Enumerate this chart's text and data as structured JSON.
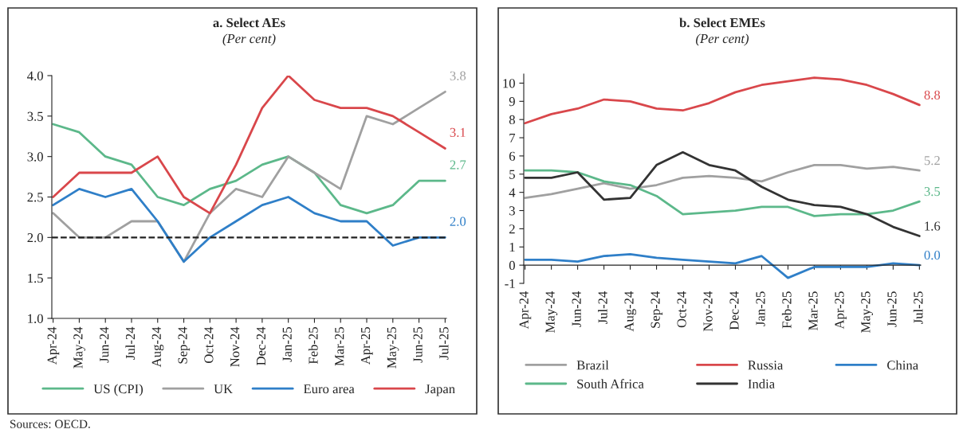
{
  "chart_data": [
    {
      "type": "line",
      "title": "a. Select AEs",
      "subtitle": "(Per cent)",
      "categories": [
        "Apr-24",
        "May-24",
        "Jun-24",
        "Jul-24",
        "Aug-24",
        "Sep-24",
        "Oct-24",
        "Nov-24",
        "Dec-24",
        "Jan-25",
        "Feb-25",
        "Mar-25",
        "Apr-25",
        "May-25",
        "Jun-25",
        "Jul-25"
      ],
      "series": [
        {
          "name": "US (CPI)",
          "color": "#5cb88a",
          "values": [
            3.4,
            3.3,
            3.0,
            2.9,
            2.5,
            2.4,
            2.6,
            2.7,
            2.9,
            3.0,
            2.8,
            2.4,
            2.3,
            2.4,
            2.7,
            2.7
          ],
          "value_labels": [
            null,
            null,
            null,
            null,
            null,
            null,
            null,
            null,
            null,
            null,
            null,
            null,
            null,
            null,
            null,
            "2.7"
          ]
        },
        {
          "name": "UK",
          "color": "#a0a0a0",
          "values": [
            2.3,
            2.0,
            2.0,
            2.2,
            2.2,
            1.7,
            2.3,
            2.6,
            2.5,
            3.0,
            2.8,
            2.6,
            3.5,
            3.4,
            3.6,
            3.8
          ],
          "value_labels": [
            null,
            null,
            null,
            null,
            null,
            null,
            null,
            null,
            null,
            null,
            null,
            null,
            null,
            null,
            null,
            "3.8"
          ]
        },
        {
          "name": "Euro area",
          "color": "#2f7fc8",
          "values": [
            2.4,
            2.6,
            2.5,
            2.6,
            2.2,
            1.7,
            2.0,
            2.2,
            2.4,
            2.5,
            2.3,
            2.2,
            2.2,
            1.9,
            2.0,
            2.0
          ],
          "value_labels": [
            null,
            null,
            null,
            null,
            null,
            null,
            null,
            null,
            null,
            null,
            null,
            null,
            null,
            null,
            null,
            "2.0"
          ]
        },
        {
          "name": "Japan",
          "color": "#d9474b",
          "values": [
            2.5,
            2.8,
            2.8,
            2.8,
            3.0,
            2.5,
            2.3,
            2.9,
            3.6,
            4.0,
            3.7,
            3.6,
            3.6,
            3.5,
            3.3,
            3.1
          ],
          "value_labels": [
            null,
            null,
            null,
            null,
            null,
            null,
            null,
            null,
            null,
            null,
            null,
            null,
            null,
            null,
            null,
            "3.1"
          ]
        }
      ],
      "ylim": [
        1.0,
        4.0
      ],
      "yticks": [
        {
          "value": 1.0,
          "label": "1.0"
        },
        {
          "value": 1.5,
          "label": "1.5"
        },
        {
          "value": 2.0,
          "label": "2.0"
        },
        {
          "value": 2.5,
          "label": "2.5"
        },
        {
          "value": 3.0,
          "label": "3.0"
        },
        {
          "value": 3.5,
          "label": "3.5"
        },
        {
          "value": 4.0,
          "label": "4.0"
        }
      ],
      "ref_lines": [
        {
          "axis": "y",
          "value": 2.0,
          "color": "#222222",
          "line_style": "dashed"
        }
      ],
      "legend": "bottom",
      "grid": false,
      "line_style": "solid",
      "marker": "none",
      "annotations": [
        "Sources: OECD."
      ]
    },
    {
      "type": "line",
      "title": "b. Select EMEs",
      "subtitle": "(Per cent)",
      "categories": [
        "Apr-24",
        "May-24",
        "Jun-24",
        "Jul-24",
        "Aug-24",
        "Sep-24",
        "Oct-24",
        "Nov-24",
        "Dec-24",
        "Jan-25",
        "Feb-25",
        "Mar-25",
        "Apr-25",
        "May-25",
        "Jun-25",
        "Jul-25"
      ],
      "series": [
        {
          "name": "Brazil",
          "color": "#a0a0a0",
          "values": [
            3.7,
            3.9,
            4.2,
            4.5,
            4.2,
            4.4,
            4.8,
            4.9,
            4.8,
            4.6,
            5.1,
            5.5,
            5.5,
            5.3,
            5.4,
            5.2
          ],
          "value_labels": [
            null,
            null,
            null,
            null,
            null,
            null,
            null,
            null,
            null,
            null,
            null,
            null,
            null,
            null,
            null,
            "5.2"
          ]
        },
        {
          "name": "Russia",
          "color": "#d9474b",
          "values": [
            7.8,
            8.3,
            8.6,
            9.1,
            9.0,
            8.6,
            8.5,
            8.9,
            9.5,
            9.9,
            10.1,
            10.3,
            10.2,
            9.9,
            9.4,
            8.8
          ],
          "value_labels": [
            null,
            null,
            null,
            null,
            null,
            null,
            null,
            null,
            null,
            null,
            null,
            null,
            null,
            null,
            null,
            "8.8"
          ]
        },
        {
          "name": "China",
          "color": "#2f7fc8",
          "values": [
            0.3,
            0.3,
            0.2,
            0.5,
            0.6,
            0.4,
            0.3,
            0.2,
            0.1,
            0.5,
            -0.7,
            -0.1,
            -0.1,
            -0.1,
            0.1,
            0.0
          ],
          "value_labels": [
            null,
            null,
            null,
            null,
            null,
            null,
            null,
            null,
            null,
            null,
            null,
            null,
            null,
            null,
            null,
            "0.0"
          ]
        },
        {
          "name": "South Africa",
          "color": "#5cb88a",
          "values": [
            5.2,
            5.2,
            5.1,
            4.6,
            4.4,
            3.8,
            2.8,
            2.9,
            3.0,
            3.2,
            3.2,
            2.7,
            2.8,
            2.8,
            3.0,
            3.5
          ],
          "value_labels": [
            null,
            null,
            null,
            null,
            null,
            null,
            null,
            null,
            null,
            null,
            null,
            null,
            null,
            null,
            null,
            "3.5"
          ]
        },
        {
          "name": "India",
          "color": "#333333",
          "values": [
            4.8,
            4.8,
            5.1,
            3.6,
            3.7,
            5.5,
            6.2,
            5.5,
            5.2,
            4.3,
            3.6,
            3.3,
            3.2,
            2.8,
            2.1,
            1.6
          ],
          "value_labels": [
            null,
            null,
            null,
            null,
            null,
            null,
            null,
            null,
            null,
            null,
            null,
            null,
            null,
            null,
            null,
            "1.6"
          ]
        }
      ],
      "ylim": [
        -1,
        10.5
      ],
      "yticks": [
        -1,
        0,
        1,
        2,
        3,
        4,
        5,
        6,
        7,
        8,
        9,
        10
      ],
      "legend": "bottom",
      "grid": false,
      "line_style": "solid",
      "marker": "none"
    }
  ]
}
